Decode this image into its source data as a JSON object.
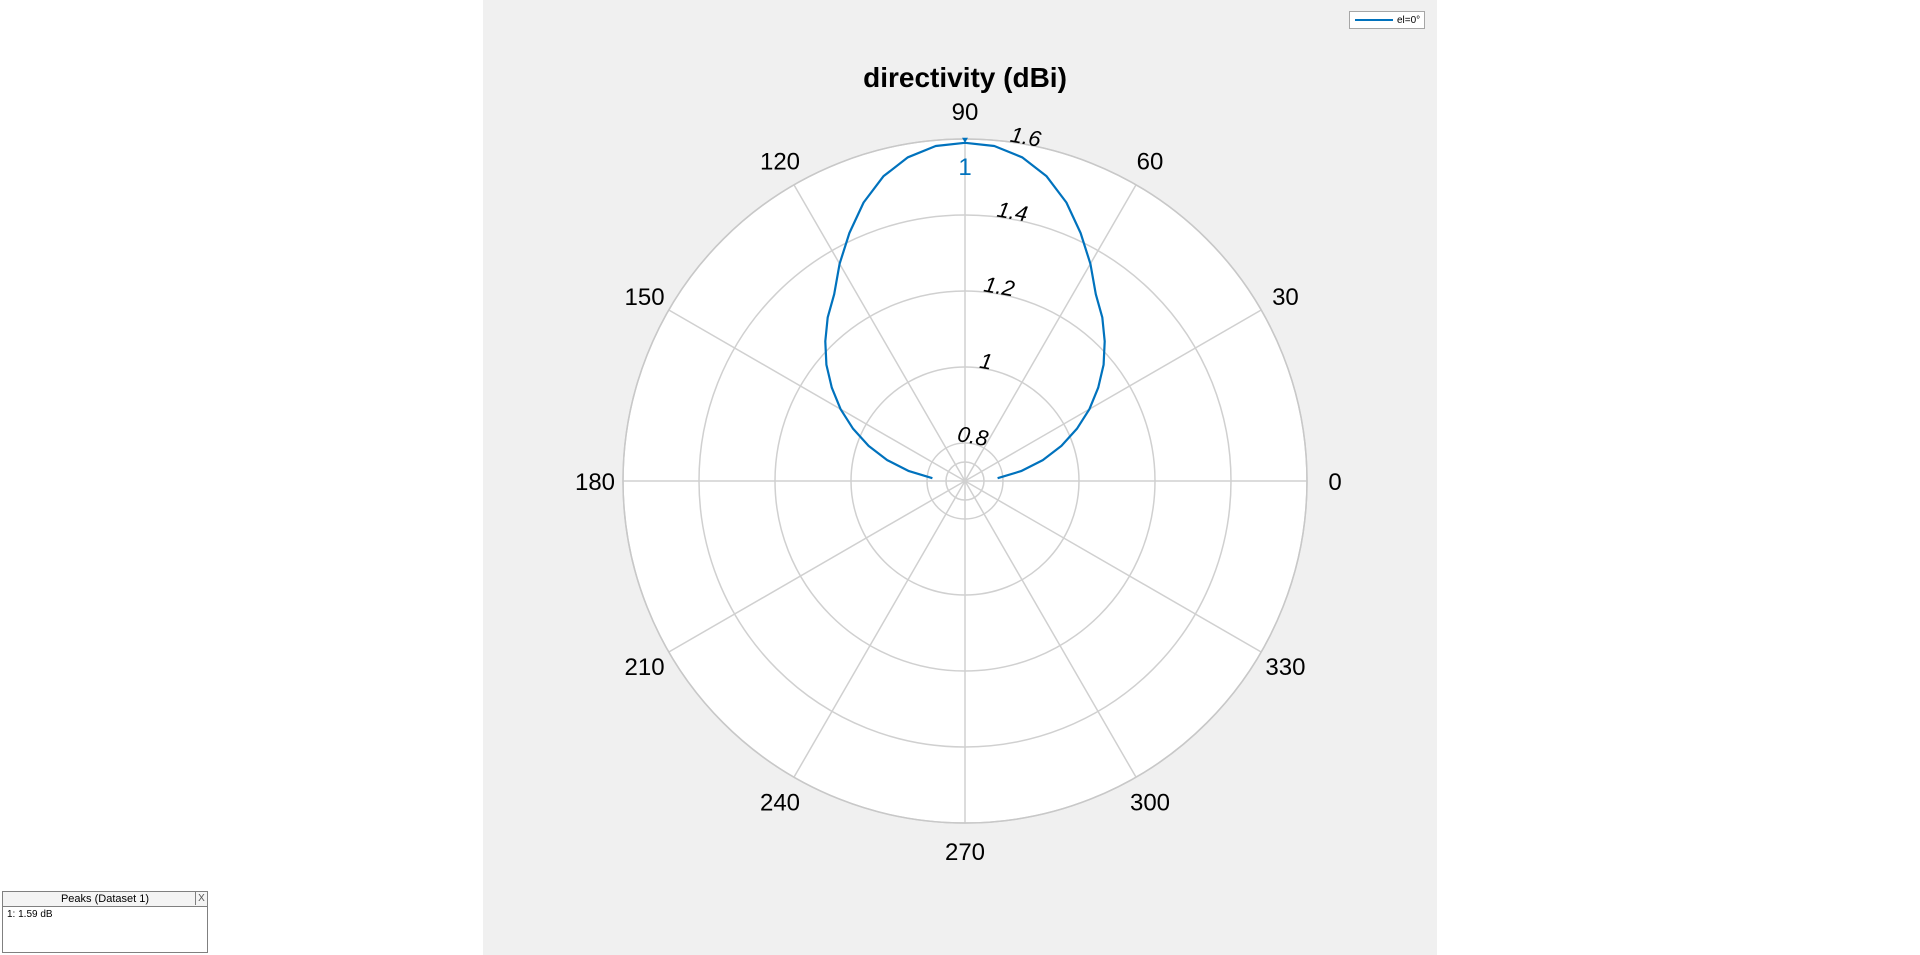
{
  "chart_data": {
    "type": "polar",
    "title": "directivity (dBi)",
    "angle_ticks": [
      "90",
      "60",
      "30",
      "0",
      "330",
      "300",
      "270",
      "240",
      "210",
      "180",
      "150",
      "120"
    ],
    "angle_tick_values": [
      90,
      60,
      30,
      0,
      330,
      300,
      270,
      240,
      210,
      180,
      150,
      120
    ],
    "radial_ticks": [
      "0.8",
      "1",
      "1.2",
      "1.4",
      "1.6"
    ],
    "radial_tick_values": [
      0.8,
      1.0,
      1.2,
      1.4,
      1.6
    ],
    "rlim": [
      0.7,
      1.6
    ],
    "grid": true,
    "legend_position": "top-right",
    "peak_marker_label": "1",
    "series": [
      {
        "name": "el=0°",
        "color": "#0072bd",
        "theta_deg": [
          5,
          10,
          15,
          20,
          25,
          30,
          35,
          40,
          45,
          50,
          55,
          60,
          65,
          70,
          75,
          80,
          85,
          90,
          95,
          100,
          105,
          110,
          115,
          120,
          125,
          130,
          135,
          140,
          145,
          150,
          155,
          160,
          165,
          170,
          175
        ],
        "r": [
          0.786,
          0.85,
          0.912,
          0.97,
          1.025,
          1.078,
          1.128,
          1.176,
          1.22,
          1.262,
          1.3,
          1.36,
          1.42,
          1.48,
          1.53,
          1.565,
          1.585,
          1.59,
          1.585,
          1.565,
          1.53,
          1.48,
          1.42,
          1.36,
          1.3,
          1.262,
          1.22,
          1.176,
          1.128,
          1.078,
          1.025,
          0.97,
          0.912,
          0.85,
          0.786
        ]
      }
    ]
  },
  "legend": {
    "label": "el=0°"
  },
  "peaks_panel": {
    "title": "Peaks (Dataset 1)",
    "close_label": "X",
    "entry": "1: 1.59 dB"
  }
}
